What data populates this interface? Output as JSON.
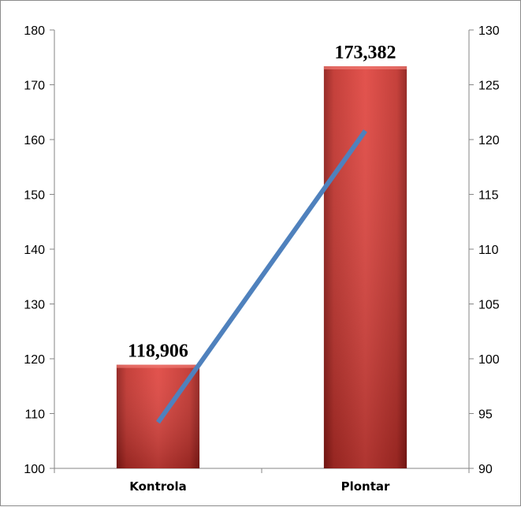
{
  "chart_data": {
    "type": "bar",
    "categories": [
      "Kontrola",
      "Plontar"
    ],
    "series": [
      {
        "type": "bar",
        "axis": "left",
        "values": [
          118.906,
          173.382
        ],
        "data_labels": [
          "118,906",
          "173,382"
        ],
        "color": "#c9302c"
      },
      {
        "type": "line",
        "axis": "right",
        "values": [
          94.2,
          120.8
        ],
        "color": "#4f81bd"
      }
    ],
    "y_left": {
      "min": 100,
      "max": 180,
      "step": 10,
      "ticks": [
        "100",
        "110",
        "120",
        "130",
        "140",
        "150",
        "160",
        "170",
        "180"
      ]
    },
    "y_right": {
      "min": 90,
      "max": 130,
      "step": 5,
      "ticks": [
        "90",
        "95",
        "100",
        "105",
        "110",
        "115",
        "120",
        "125",
        "130"
      ]
    },
    "title": "",
    "xlabel": "",
    "ylabel": "",
    "grid": false,
    "legend": "none"
  }
}
